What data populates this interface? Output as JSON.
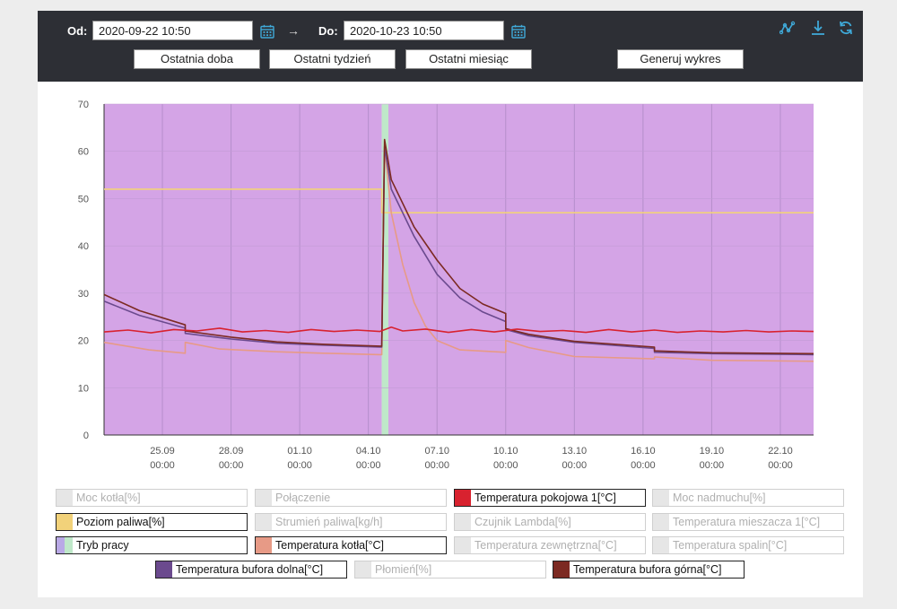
{
  "toolbar": {
    "from_label": "Od:",
    "from_value": "2020-09-22 10:50",
    "arrow": "→",
    "to_label": "Do:",
    "to_value": "2020-10-23 10:50",
    "btn_day": "Ostatnia doba",
    "btn_week": "Ostatni tydzień",
    "btn_month": "Ostatni miesiąc",
    "btn_generate": "Generuj wykres",
    "icons": [
      "chart-series-icon",
      "download-icon",
      "refresh-icon"
    ],
    "accent": "#3fa9d8"
  },
  "chart_data": {
    "type": "line",
    "title": "",
    "xlabel": "",
    "ylabel": "",
    "ylim": [
      0,
      70
    ],
    "yticks": [
      0,
      10,
      20,
      30,
      40,
      50,
      60,
      70
    ],
    "xlim": [
      "2020-09-22 10:50",
      "2020-10-23 10:50"
    ],
    "xticks": [
      {
        "date": "2020-09-25 00:00",
        "l1": "25.09",
        "l2": "00:00"
      },
      {
        "date": "2020-09-28 00:00",
        "l1": "28.09",
        "l2": "00:00"
      },
      {
        "date": "2020-10-01 00:00",
        "l1": "01.10",
        "l2": "00:00"
      },
      {
        "date": "2020-10-04 00:00",
        "l1": "04.10",
        "l2": "00:00"
      },
      {
        "date": "2020-10-07 00:00",
        "l1": "07.10",
        "l2": "00:00"
      },
      {
        "date": "2020-10-10 00:00",
        "l1": "10.10",
        "l2": "00:00"
      },
      {
        "date": "2020-10-13 00:00",
        "l1": "13.10",
        "l2": "00:00"
      },
      {
        "date": "2020-10-16 00:00",
        "l1": "16.10",
        "l2": "00:00"
      },
      {
        "date": "2020-10-19 00:00",
        "l1": "19.10",
        "l2": "00:00"
      },
      {
        "date": "2020-10-22 00:00",
        "l1": "22.10",
        "l2": "00:00"
      }
    ],
    "grid": true,
    "tryb_pracy_bands": [
      {
        "from": "2020-09-22 10:50",
        "to": "2020-10-04 14:00",
        "mode": "purple"
      },
      {
        "from": "2020-10-04 14:00",
        "to": "2020-10-04 21:00",
        "mode": "green"
      },
      {
        "from": "2020-10-04 21:00",
        "to": "2020-10-23 10:50",
        "mode": "purple"
      }
    ],
    "series": [
      {
        "name": "Poziom paliwa[%]",
        "color": "#f2d27a",
        "points": [
          [
            "2020-09-22 10:50",
            52
          ],
          [
            "2020-10-04 14:00",
            52
          ],
          [
            "2020-10-04 14:00",
            47
          ],
          [
            "2020-10-23 10:50",
            47
          ]
        ]
      },
      {
        "name": "Temperatura kotła[°C]",
        "color": "#e79a86",
        "points": [
          [
            "2020-09-22 10:50",
            19.6
          ],
          [
            "2020-09-24 10:00",
            18.0
          ],
          [
            "2020-09-26 00:00",
            17.3
          ],
          [
            "2020-09-26 00:00",
            19.6
          ],
          [
            "2020-09-27 12:00",
            18.2
          ],
          [
            "2020-09-30 00:00",
            17.6
          ],
          [
            "2020-10-02 00:00",
            17.3
          ],
          [
            "2020-10-04 12:00",
            17.0
          ],
          [
            "2020-10-04 14:00",
            17.0
          ],
          [
            "2020-10-04 17:00",
            61.0
          ],
          [
            "2020-10-05 00:00",
            47.0
          ],
          [
            "2020-10-05 12:00",
            36.0
          ],
          [
            "2020-10-06 00:00",
            28.0
          ],
          [
            "2020-10-06 12:00",
            23.0
          ],
          [
            "2020-10-07 00:00",
            20.0
          ],
          [
            "2020-10-08 00:00",
            18.0
          ],
          [
            "2020-10-10 00:00",
            17.5
          ],
          [
            "2020-10-10 00:00",
            20.0
          ],
          [
            "2020-10-11 00:00",
            18.5
          ],
          [
            "2020-10-13 00:00",
            16.6
          ],
          [
            "2020-10-16 12:00",
            16.1
          ],
          [
            "2020-10-16 12:00",
            16.5
          ],
          [
            "2020-10-19 00:00",
            15.8
          ],
          [
            "2020-10-23 10:50",
            15.6
          ]
        ]
      },
      {
        "name": "Temperatura bufora dolna[°C]",
        "color": "#6b4a8e",
        "points": [
          [
            "2020-09-22 10:50",
            28.3
          ],
          [
            "2020-09-24 00:00",
            25.3
          ],
          [
            "2020-09-26 00:00",
            22.6
          ],
          [
            "2020-09-26 00:00",
            21.5
          ],
          [
            "2020-09-28 00:00",
            20.3
          ],
          [
            "2020-09-30 00:00",
            19.4
          ],
          [
            "2020-10-02 00:00",
            19.0
          ],
          [
            "2020-10-04 12:00",
            18.6
          ],
          [
            "2020-10-04 14:00",
            18.6
          ],
          [
            "2020-10-04 17:00",
            61.0
          ],
          [
            "2020-10-05 00:00",
            52.0
          ],
          [
            "2020-10-06 00:00",
            42.0
          ],
          [
            "2020-10-07 00:00",
            34.0
          ],
          [
            "2020-10-08 00:00",
            29.0
          ],
          [
            "2020-10-09 00:00",
            26.0
          ],
          [
            "2020-10-10 00:00",
            24.0
          ],
          [
            "2020-10-10 00:00",
            22.3
          ],
          [
            "2020-10-11 00:00",
            21.0
          ],
          [
            "2020-10-13 00:00",
            19.6
          ],
          [
            "2020-10-16 12:00",
            18.3
          ],
          [
            "2020-10-16 12:00",
            17.5
          ],
          [
            "2020-10-19 00:00",
            17.2
          ],
          [
            "2020-10-23 10:50",
            17.0
          ]
        ]
      },
      {
        "name": "Temperatura bufora górna[°C]",
        "color": "#7c2a22",
        "points": [
          [
            "2020-09-22 10:50",
            29.7
          ],
          [
            "2020-09-24 00:00",
            26.3
          ],
          [
            "2020-09-26 00:00",
            23.3
          ],
          [
            "2020-09-26 00:00",
            22.0
          ],
          [
            "2020-09-28 00:00",
            20.7
          ],
          [
            "2020-09-30 00:00",
            19.7
          ],
          [
            "2020-10-02 00:00",
            19.2
          ],
          [
            "2020-10-04 12:00",
            18.8
          ],
          [
            "2020-10-04 14:00",
            18.8
          ],
          [
            "2020-10-04 17:00",
            62.5
          ],
          [
            "2020-10-05 00:00",
            54.0
          ],
          [
            "2020-10-06 00:00",
            44.0
          ],
          [
            "2020-10-07 00:00",
            37.0
          ],
          [
            "2020-10-08 00:00",
            31.0
          ],
          [
            "2020-10-09 00:00",
            27.7
          ],
          [
            "2020-10-10 00:00",
            25.7
          ],
          [
            "2020-10-10 00:00",
            22.5
          ],
          [
            "2020-10-11 00:00",
            21.3
          ],
          [
            "2020-10-13 00:00",
            19.8
          ],
          [
            "2020-10-16 12:00",
            18.6
          ],
          [
            "2020-10-16 12:00",
            17.8
          ],
          [
            "2020-10-19 00:00",
            17.4
          ],
          [
            "2020-10-23 10:50",
            17.2
          ]
        ]
      },
      {
        "name": "Temperatura pokojowa 1[°C]",
        "color": "#d8222f",
        "points": [
          [
            "2020-09-22 10:50",
            21.8
          ],
          [
            "2020-09-23 12:00",
            22.2
          ],
          [
            "2020-09-24 12:00",
            21.6
          ],
          [
            "2020-09-25 12:00",
            22.3
          ],
          [
            "2020-09-26 12:00",
            22.0
          ],
          [
            "2020-09-27 12:00",
            22.6
          ],
          [
            "2020-09-28 12:00",
            21.8
          ],
          [
            "2020-09-29 12:00",
            22.1
          ],
          [
            "2020-09-30 12:00",
            21.7
          ],
          [
            "2020-10-01 12:00",
            22.3
          ],
          [
            "2020-10-02 12:00",
            21.9
          ],
          [
            "2020-10-03 12:00",
            22.2
          ],
          [
            "2020-10-04 12:00",
            21.9
          ],
          [
            "2020-10-05 00:00",
            22.8
          ],
          [
            "2020-10-05 12:00",
            22.0
          ],
          [
            "2020-10-06 12:00",
            22.4
          ],
          [
            "2020-10-07 12:00",
            21.7
          ],
          [
            "2020-10-08 12:00",
            22.3
          ],
          [
            "2020-10-09 12:00",
            21.8
          ],
          [
            "2020-10-10 12:00",
            22.4
          ],
          [
            "2020-10-11 12:00",
            21.9
          ],
          [
            "2020-10-12 12:00",
            22.1
          ],
          [
            "2020-10-13 12:00",
            21.7
          ],
          [
            "2020-10-14 12:00",
            22.3
          ],
          [
            "2020-10-15 12:00",
            21.8
          ],
          [
            "2020-10-16 12:00",
            22.2
          ],
          [
            "2020-10-17 12:00",
            21.7
          ],
          [
            "2020-10-18 12:00",
            22.0
          ],
          [
            "2020-10-19 12:00",
            21.8
          ],
          [
            "2020-10-20 12:00",
            22.1
          ],
          [
            "2020-10-21 12:00",
            21.8
          ],
          [
            "2020-10-22 12:00",
            22.0
          ],
          [
            "2020-10-23 10:50",
            21.9
          ]
        ]
      }
    ]
  },
  "legend": {
    "rows": [
      [
        {
          "name": "Moc kotła[%]",
          "color": "#e6e6e6",
          "active": false
        },
        {
          "name": "Połączenie",
          "color": "#e6e6e6",
          "active": false
        },
        {
          "name": "Temperatura pokojowa 1[°C]",
          "color": "#d8222f",
          "active": true
        },
        {
          "name": "Moc nadmuchu[%]",
          "color": "#e6e6e6",
          "active": false
        }
      ],
      [
        {
          "name": "Poziom paliwa[%]",
          "color": "#f2d27a",
          "active": true
        },
        {
          "name": "Strumień paliwa[kg/h]",
          "color": "#e6e6e6",
          "active": false
        },
        {
          "name": "Czujnik Lambda[%]",
          "color": "#e6e6e6",
          "active": false
        },
        {
          "name": "Temperatura mieszacza 1[°C]",
          "color": "#e6e6e6",
          "active": false
        }
      ],
      [
        {
          "name": "Tryb pracy",
          "color": "#b9a9e6",
          "color2": "#bfe8c9",
          "active": true
        },
        {
          "name": "Temperatura kotła[°C]",
          "color": "#e79a86",
          "active": true
        },
        {
          "name": "Temperatura zewnętrzna[°C]",
          "color": "#e6e6e6",
          "active": false
        },
        {
          "name": "Temperatura spalin[°C]",
          "color": "#e6e6e6",
          "active": false
        }
      ],
      [
        {
          "name": "Temperatura bufora dolna[°C]",
          "color": "#6b4a8e",
          "active": true
        },
        {
          "name": "Płomień[%]",
          "color": "#e6e6e6",
          "active": false
        },
        {
          "name": "Temperatura bufora górna[°C]",
          "color": "#7c2a22",
          "active": true
        }
      ]
    ]
  }
}
